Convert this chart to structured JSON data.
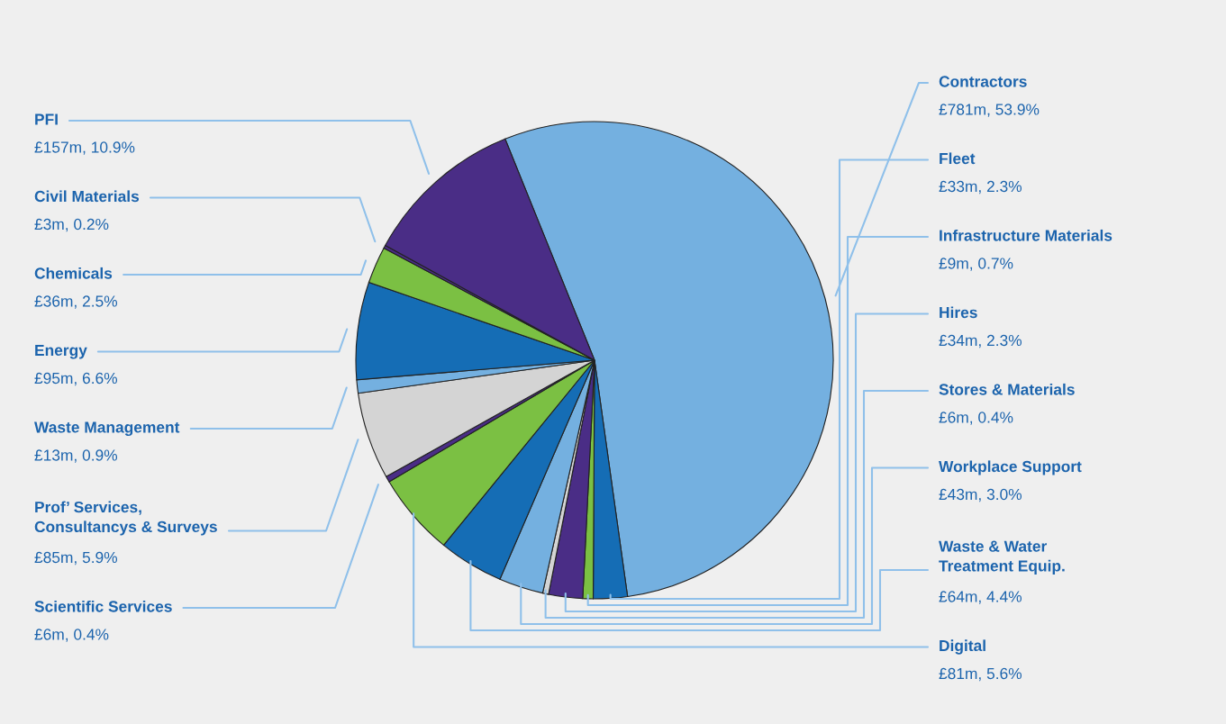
{
  "chart_data": {
    "type": "pie",
    "categories": [
      "Contractors",
      "Fleet",
      "Infrastructure Materials",
      "Hires",
      "Stores & Materials",
      "Workplace Support",
      "Waste & Water\nTreatment Equip.",
      "Digital",
      "Scientific Services",
      "Prof’ Services,\nConsultancys & Surveys",
      "Waste Management",
      "Energy",
      "Chemicals",
      "Civil Materials",
      "PFI"
    ],
    "values": [
      53.9,
      2.3,
      0.7,
      2.3,
      0.4,
      3.0,
      4.4,
      5.6,
      0.4,
      5.9,
      0.9,
      6.6,
      2.5,
      0.2,
      10.9
    ],
    "value_labels": [
      "£781m, 53.9%",
      "£33m, 2.3%",
      "£9m, 0.7%",
      "£34m, 2.3%",
      "£6m, 0.4%",
      "£43m, 3.0%",
      "£64m, 4.4%",
      "£81m, 5.6%",
      "£6m, 0.4%",
      "£85m, 5.9%",
      "£13m, 0.9%",
      "£95m, 6.6%",
      "£36m, 2.5%",
      "£3m, 0.2%",
      "£157m, 10.9%"
    ],
    "colors": [
      "#74b0e0",
      "#156db5",
      "#7bc043",
      "#4a2d86",
      "#d4d4d4",
      "#74b0e0",
      "#156db5",
      "#7bc043",
      "#4a2d86",
      "#d4d4d4",
      "#74b0e0",
      "#156db5",
      "#7bc043",
      "#4a2d86",
      "#4a2d86"
    ],
    "legend": false
  }
}
